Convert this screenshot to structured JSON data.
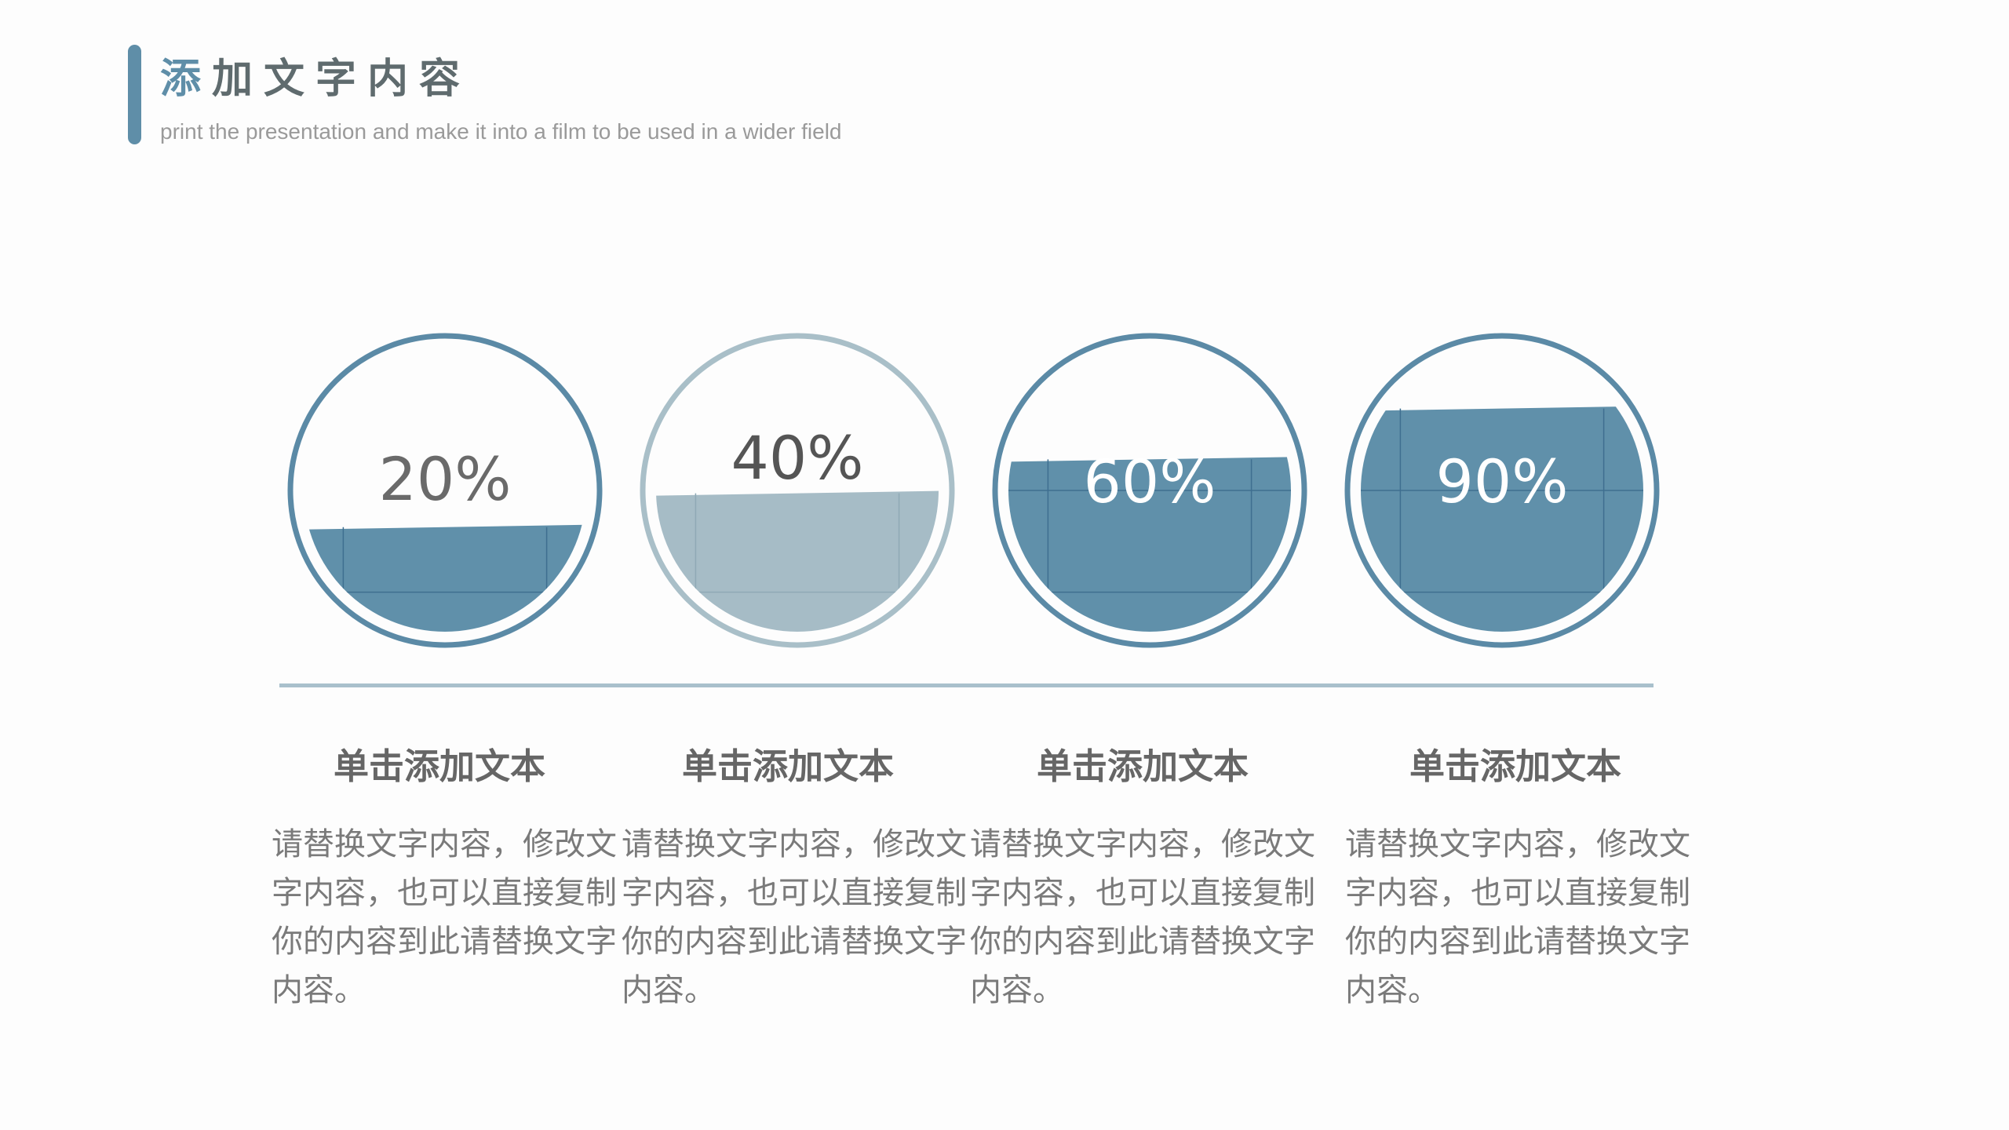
{
  "header": {
    "title_first": "添",
    "title_rest": "加文字内容",
    "subtitle": "print the presentation and make it into a film to be used in a wider field"
  },
  "colors": {
    "accent": "#5f8ea8",
    "fill_dark": "#6090aa",
    "fill_light": "#a6bcc6",
    "stroke_dark": "#5b8aa6",
    "stroke_light": "#a9bfc8",
    "divider": "#a9c0cc"
  },
  "chart_data": {
    "type": "gauge",
    "items": [
      {
        "label": "20%",
        "value": 20,
        "style": "dark"
      },
      {
        "label": "40%",
        "value": 40,
        "style": "light"
      },
      {
        "label": "60%",
        "value": 60,
        "style": "dark"
      },
      {
        "label": "90%",
        "value": 90,
        "style": "dark"
      }
    ]
  },
  "columns": [
    {
      "heading": "单击添加文本",
      "body": "请替换文字内容，修改文字内容，也可以直接复制你的内容到此请替换文字内容。"
    },
    {
      "heading": "单击添加文本",
      "body": "请替换文字内容，修改文字内容，也可以直接复制你的内容到此请替换文字内容。"
    },
    {
      "heading": "单击添加文本",
      "body": "请替换文字内容，修改文字内容，也可以直接复制你的内容到此请替换文字内容。"
    },
    {
      "heading": "单击添加文本",
      "body": "请替换文字内容，修改文字内容，也可以直接复制你的内容到此请替换文字内容。"
    }
  ]
}
